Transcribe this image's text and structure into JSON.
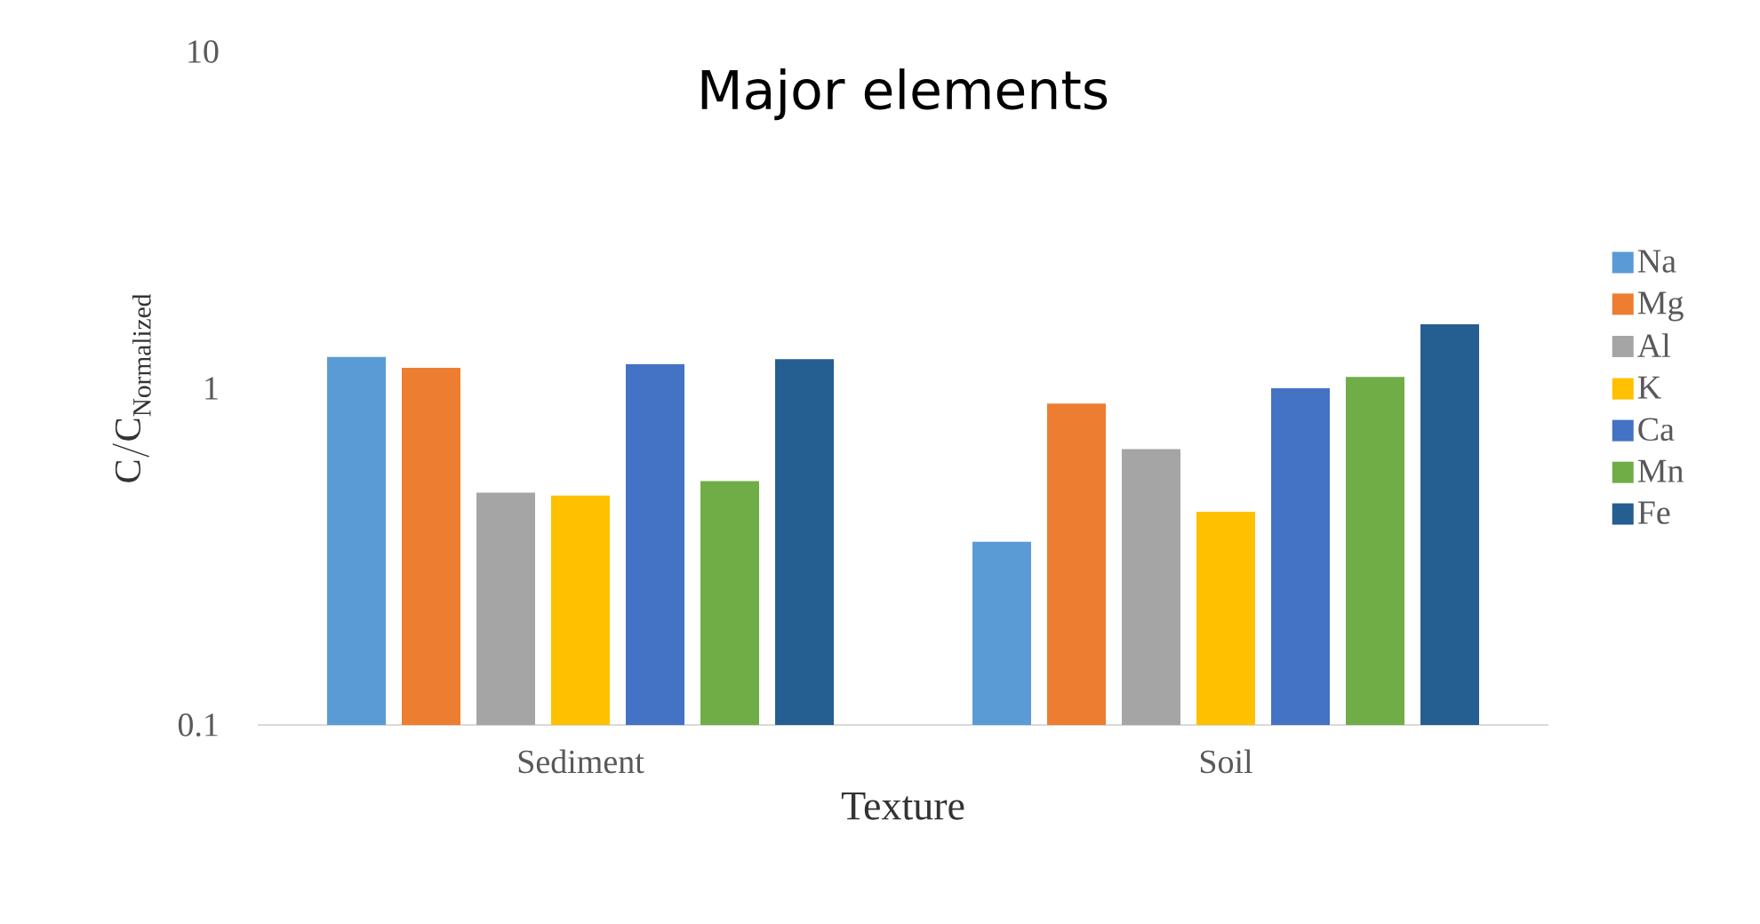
{
  "chart_data": {
    "type": "bar",
    "title": "Major elements",
    "xlabel": "Texture",
    "ylabel": "\\mathrm{C/C}_{\\mathrm{Normalized}}",
    "categories": [
      "Sediment",
      "Soil"
    ],
    "series": [
      {
        "name": "Na",
        "color": "#5b9bd5",
        "values": [
          1.24,
          0.35
        ]
      },
      {
        "name": "Mg",
        "color": "#ed7d31",
        "values": [
          1.15,
          0.9
        ]
      },
      {
        "name": "Al",
        "color": "#a5a5a5",
        "values": [
          0.49,
          0.66
        ]
      },
      {
        "name": "K",
        "color": "#ffc000",
        "values": [
          0.48,
          0.43
        ]
      },
      {
        "name": "Ca",
        "color": "#4472c4",
        "values": [
          1.18,
          1.0
        ]
      },
      {
        "name": "Mn",
        "color": "#70ad47",
        "values": [
          0.53,
          1.08
        ]
      },
      {
        "name": "Fe",
        "color": "#255e91",
        "values": [
          1.22,
          1.55
        ]
      }
    ],
    "log": true,
    "ylim": [
      0.1,
      10
    ],
    "yticks": [
      0.1,
      1,
      10
    ],
    "legend": "right"
  }
}
